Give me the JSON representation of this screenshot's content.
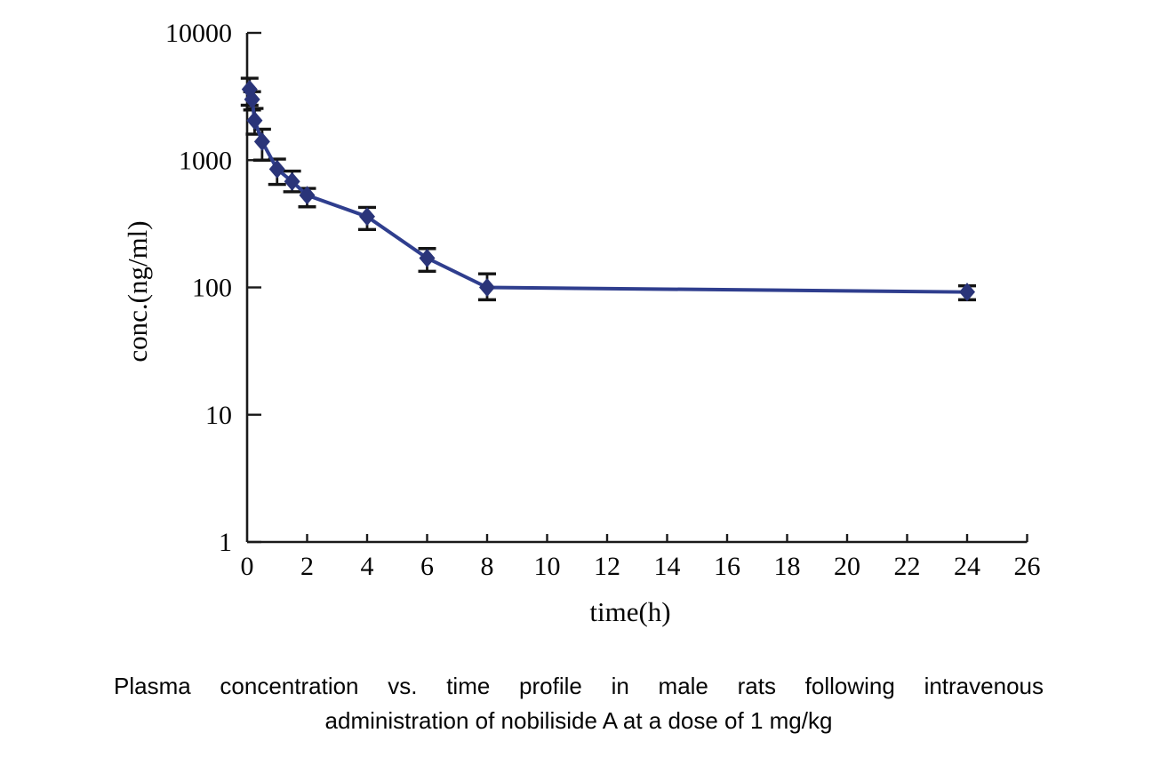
{
  "figure": {
    "caption_line1": "Plasma concentration vs. time profile in male rats following intravenous",
    "caption_line2": "administration of nobiliside A at a dose of 1 mg/kg"
  },
  "chart_data": {
    "type": "line",
    "title": "",
    "xlabel": "time(h)",
    "ylabel": "conc.(ng/ml)",
    "y_scale": "log",
    "xlim": [
      0,
      26
    ],
    "ylim": [
      1,
      10000
    ],
    "x_ticks": [
      0,
      2,
      4,
      6,
      8,
      10,
      12,
      14,
      16,
      18,
      20,
      22,
      24,
      26
    ],
    "y_ticks": [
      10000,
      1000,
      100,
      10,
      1
    ],
    "grid": false,
    "legend": "none",
    "marker": "diamond",
    "error_bars": true,
    "series": [
      {
        "points": [
          {
            "t": 0.083,
            "conc": 3600,
            "conc_low": 2700,
            "conc_high": 4400
          },
          {
            "t": 0.167,
            "conc": 3000,
            "conc_low": 2480,
            "conc_high": 3450
          },
          {
            "t": 0.25,
            "conc": 2050,
            "conc_low": 1600,
            "conc_high": 2550
          },
          {
            "t": 0.5,
            "conc": 1400,
            "conc_low": 1000,
            "conc_high": 1750
          },
          {
            "t": 1,
            "conc": 850,
            "conc_low": 645,
            "conc_high": 1020
          },
          {
            "t": 1.5,
            "conc": 680,
            "conc_low": 565,
            "conc_high": 820
          },
          {
            "t": 2,
            "conc": 530,
            "conc_low": 430,
            "conc_high": 600
          },
          {
            "t": 4,
            "conc": 360,
            "conc_low": 285,
            "conc_high": 425
          },
          {
            "t": 6,
            "conc": 170,
            "conc_low": 134,
            "conc_high": 202
          },
          {
            "t": 8,
            "conc": 100,
            "conc_low": 80,
            "conc_high": 128
          },
          {
            "t": 24,
            "conc": 92,
            "conc_low": 80,
            "conc_high": 103
          }
        ]
      }
    ],
    "colors": {
      "line": "#2f3e8e",
      "marker": "#2a3479",
      "error_bar": "#141414",
      "axis": "#1a1a1a"
    }
  }
}
